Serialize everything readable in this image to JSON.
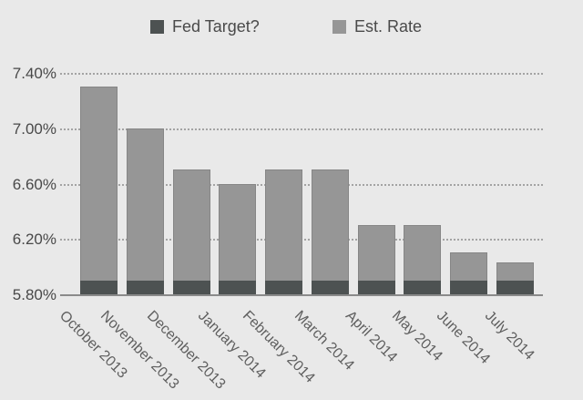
{
  "chart_data": {
    "type": "bar",
    "subtype": "stacked-overlay",
    "title": "",
    "xlabel": "",
    "ylabel": "",
    "categories": [
      "October 2013",
      "November 2013",
      "December 2013",
      "January 2014",
      "February 2014",
      "March 2014",
      "April 2014",
      "May 2014",
      "June 2014",
      "July 2014"
    ],
    "series": [
      {
        "name": "Fed Target?",
        "color": "#4d5252",
        "values": [
          5.9,
          5.9,
          5.9,
          5.9,
          5.9,
          5.9,
          5.9,
          5.9,
          5.9,
          5.9
        ]
      },
      {
        "name": "Est. Rate",
        "color": "#969696",
        "values": [
          7.3,
          7.0,
          6.7,
          6.6,
          6.7,
          6.7,
          6.3,
          6.3,
          6.1,
          6.03
        ]
      }
    ],
    "ylim": [
      5.8,
      7.4
    ],
    "yticks": [
      5.8,
      6.2,
      6.6,
      7.0,
      7.4
    ],
    "ytick_labels": [
      "5.80%",
      "6.20%",
      "6.60%",
      "7.00%",
      "7.40%"
    ],
    "grid": "horizontal-dotted",
    "legend_position": "top"
  },
  "colors": {
    "background": "#e9e9e9",
    "gridline": "#a3a3a3",
    "axis_line": "#8a8a8a",
    "ytick_text": "#484848",
    "xtick_text": "#5f5f5f",
    "legend_text": "#4a4a4a"
  }
}
